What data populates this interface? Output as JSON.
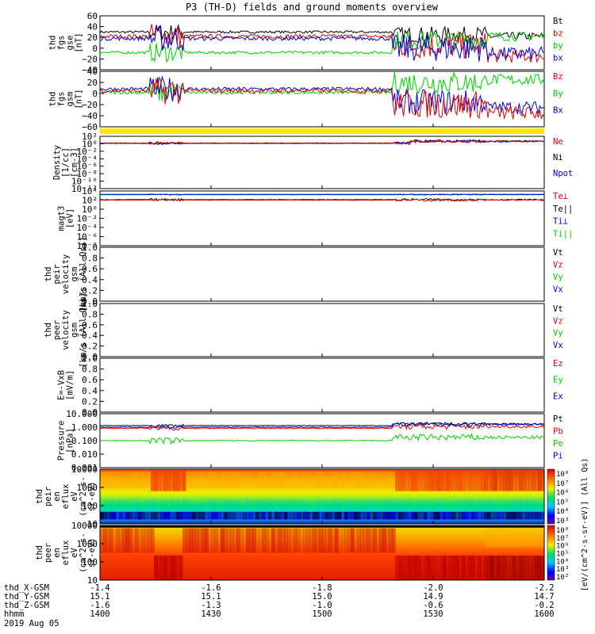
{
  "chart_data": {
    "type": "line",
    "title": "P3 (TH-D) fields and ground moments overview",
    "panels": [
      {
        "id": "fgs-gse",
        "ylabel": [
          "thd",
          "fgs",
          "gse",
          "[nT]"
        ],
        "ylim": [
          -40,
          60
        ],
        "yscale": "linear",
        "yticks": [
          "60",
          "40",
          "20",
          "0",
          "−20",
          "−40"
        ],
        "legend": [
          {
            "name": "Bt",
            "color": "#000000"
          },
          {
            "name": "bz",
            "color": "#e00000"
          },
          {
            "name": "by",
            "color": "#00cc00"
          },
          {
            "name": "bx",
            "color": "#0000dd"
          }
        ]
      },
      {
        "id": "fgs-gsm",
        "ylabel": [
          "thd",
          "fgs",
          "gsm",
          "[nT]"
        ],
        "ylim": [
          -60,
          40
        ],
        "yscale": "linear",
        "yticks": [
          "40",
          "20",
          "0",
          "−20",
          "−40",
          "−60"
        ],
        "legend": [
          {
            "name": "Bz",
            "color": "#e00000"
          },
          {
            "name": "By",
            "color": "#00cc00"
          },
          {
            "name": "Bx",
            "color": "#0000dd"
          }
        ]
      },
      {
        "id": "density",
        "ylabel": [
          "Density",
          "[1/cc]",
          "[cm-3]"
        ],
        "yscale": "log",
        "yticks": [
          "10²",
          "10⁰",
          "10⁻²",
          "10⁻⁴",
          "10⁻⁶",
          "10⁻⁸",
          "10⁻¹⁰",
          "10⁻¹²"
        ],
        "legend": [
          {
            "name": "Ne",
            "color": "#e00000"
          },
          {
            "name": "Ni",
            "color": "#000000"
          },
          {
            "name": "Npot",
            "color": "#0000dd"
          }
        ]
      },
      {
        "id": "temperature",
        "ylabel": [
          "magt3",
          "[eV]"
        ],
        "yscale": "log",
        "yticks": [
          "10⁴",
          "10²",
          "10⁰",
          "10⁻²",
          "10⁻⁴",
          "10⁻⁶",
          "10⁻⁸"
        ],
        "legend": [
          {
            "name": "Te⊥",
            "color": "#e00000"
          },
          {
            "name": "Te||",
            "color": "#000000"
          },
          {
            "name": "Ti⊥",
            "color": "#0000dd"
          },
          {
            "name": "Ti||",
            "color": "#00cc00"
          }
        ]
      },
      {
        "id": "peir-velocity",
        "ylabel": [
          "thd",
          "peir",
          "velocity",
          "gsm",
          "[km/s (All Qs)]"
        ],
        "ylim": [
          0,
          1
        ],
        "yscale": "linear",
        "yticks": [
          "1.0",
          "0.8",
          "0.6",
          "0.4",
          "0.2",
          "0.0"
        ],
        "legend": [
          {
            "name": "Vt",
            "color": "#000000"
          },
          {
            "name": "Vz",
            "color": "#e00000"
          },
          {
            "name": "Vy",
            "color": "#00cc00"
          },
          {
            "name": "Vx",
            "color": "#0000dd"
          }
        ]
      },
      {
        "id": "peer-velocity",
        "ylabel": [
          "thd",
          "peer",
          "velocity",
          "gsm",
          "[km/s (All Qs)]"
        ],
        "ylim": [
          0,
          1
        ],
        "yscale": "linear",
        "yticks": [
          "1.0",
          "0.8",
          "0.6",
          "0.4",
          "0.2",
          "0.0"
        ],
        "legend": [
          {
            "name": "Vt",
            "color": "#000000"
          },
          {
            "name": "Vz",
            "color": "#e00000"
          },
          {
            "name": "Vy",
            "color": "#00cc00"
          },
          {
            "name": "Vx",
            "color": "#0000dd"
          }
        ]
      },
      {
        "id": "efield",
        "ylabel": [
          "E=-VxB",
          "[mV/m]"
        ],
        "ylim": [
          0,
          1
        ],
        "yscale": "linear",
        "yticks": [
          "1.0",
          "0.8",
          "0.6",
          "0.4",
          "0.2",
          "0.0"
        ],
        "legend": [
          {
            "name": "Ez",
            "color": "#e00000"
          },
          {
            "name": "Ey",
            "color": "#00cc00"
          },
          {
            "name": "Ex",
            "color": "#0000dd"
          }
        ]
      },
      {
        "id": "pressure",
        "ylabel": [
          "Pressure",
          "[nPa]"
        ],
        "ylim": [
          0.0001,
          10
        ],
        "yscale": "log",
        "yticks": [
          "10.000",
          "1.000",
          "0.100",
          "0.010",
          "0.001"
        ],
        "legend": [
          {
            "name": "Pt",
            "color": "#000000"
          },
          {
            "name": "Pb",
            "color": "#e00000"
          },
          {
            "name": "Pe",
            "color": "#00cc00"
          },
          {
            "name": "Pi",
            "color": "#0000dd"
          }
        ]
      },
      {
        "id": "peir-eflux",
        "type": "heatmap",
        "ylabel": [
          "thd",
          "peir",
          "en",
          "eflux",
          "eV",
          "(cm^2-s-",
          "sr-eV)"
        ],
        "yscale": "log",
        "yticks": [
          "10000",
          "1000",
          "100",
          "10"
        ],
        "colorbar_ticks": [
          "10⁸",
          "10⁷",
          "10⁶",
          "10⁵",
          "10⁴",
          "10³"
        ],
        "colorbar_label": "[eV/(cm^2-s-sr-eV)] (All Qs)"
      },
      {
        "id": "peer-eflux",
        "type": "heatmap",
        "ylabel": [
          "thd",
          "peer",
          "en",
          "eflux",
          "eV",
          "(cm^2-s-",
          "sr-eV)"
        ],
        "yscale": "log",
        "yticks": [
          "10000",
          "1000",
          "100",
          "10"
        ],
        "colorbar_ticks": [
          "10⁸",
          "10⁷",
          "10⁶",
          "10⁵",
          "10⁴",
          "10³",
          "10²"
        ],
        "colorbar_label": "[eV/(cm^2-s-sr-eV)]"
      }
    ],
    "x_axis": {
      "rows": [
        {
          "name": "thd_X-GSM",
          "values": [
            "-1.4",
            "-1.6",
            "-1.8",
            "-2.0",
            "-2.2"
          ]
        },
        {
          "name": "thd_Y-GSM",
          "values": [
            "15.1",
            "15.1",
            "15.0",
            "14.9",
            "14.7"
          ]
        },
        {
          "name": "thd_Z-GSM",
          "values": [
            "-1.6",
            "-1.3",
            "-1.0",
            "-0.6",
            "-0.2"
          ]
        },
        {
          "name": "hhmm",
          "values": [
            "1400",
            "1430",
            "1500",
            "1530",
            "1600"
          ]
        }
      ],
      "date": "2019 Aug 05"
    }
  }
}
